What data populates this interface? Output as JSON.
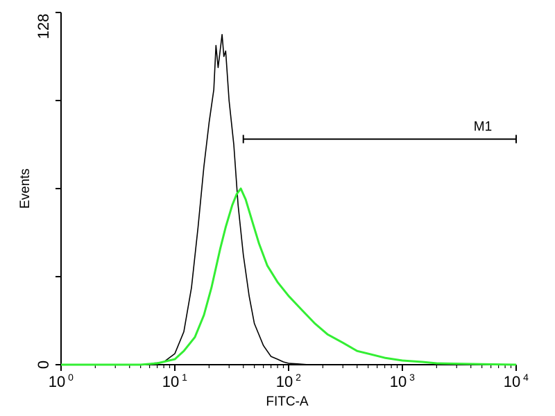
{
  "chart_data": {
    "type": "line",
    "xlabel": "FITC-A",
    "ylabel": "Events",
    "xscale": "log",
    "xlim": [
      1,
      10000
    ],
    "ylim": [
      0,
      128
    ],
    "x_ticks": [
      {
        "base": "10",
        "exp": "0"
      },
      {
        "base": "10",
        "exp": "1"
      },
      {
        "base": "10",
        "exp": "2"
      },
      {
        "base": "10",
        "exp": "3"
      },
      {
        "base": "10",
        "exp": "4"
      }
    ],
    "y_ticks": [
      "0",
      "128"
    ],
    "series": [
      {
        "color": "#000000",
        "points": [
          [
            1,
            0
          ],
          [
            5,
            0
          ],
          [
            8,
            1
          ],
          [
            10,
            4
          ],
          [
            12,
            12
          ],
          [
            14,
            28
          ],
          [
            16,
            50
          ],
          [
            18,
            72
          ],
          [
            20,
            88
          ],
          [
            22,
            100
          ],
          [
            23,
            116
          ],
          [
            24,
            108
          ],
          [
            26,
            120
          ],
          [
            27,
            112
          ],
          [
            28,
            114
          ],
          [
            30,
            96
          ],
          [
            33,
            80
          ],
          [
            36,
            58
          ],
          [
            40,
            40
          ],
          [
            45,
            25
          ],
          [
            50,
            15
          ],
          [
            60,
            7
          ],
          [
            70,
            3
          ],
          [
            80,
            2
          ],
          [
            90,
            1
          ],
          [
            100,
            0.5
          ],
          [
            120,
            0.3
          ],
          [
            150,
            0
          ],
          [
            10000,
            0
          ]
        ]
      },
      {
        "color": "#33ee33",
        "points": [
          [
            1,
            0
          ],
          [
            5,
            0
          ],
          [
            7,
            0.5
          ],
          [
            10,
            2
          ],
          [
            12,
            5
          ],
          [
            15,
            10
          ],
          [
            18,
            18
          ],
          [
            21,
            28
          ],
          [
            25,
            42
          ],
          [
            28,
            50
          ],
          [
            32,
            58
          ],
          [
            35,
            62
          ],
          [
            38,
            64
          ],
          [
            42,
            60
          ],
          [
            48,
            52
          ],
          [
            55,
            44
          ],
          [
            65,
            36
          ],
          [
            80,
            30
          ],
          [
            100,
            25
          ],
          [
            130,
            20
          ],
          [
            170,
            15
          ],
          [
            220,
            11
          ],
          [
            300,
            8
          ],
          [
            400,
            5
          ],
          [
            500,
            4
          ],
          [
            700,
            2.5
          ],
          [
            1000,
            1.5
          ],
          [
            1500,
            1
          ],
          [
            2000,
            0.5
          ],
          [
            5000,
            0.2
          ],
          [
            10000,
            0
          ]
        ]
      }
    ],
    "markers": [
      {
        "label": "M1",
        "x_start": 40,
        "x_end": 10000,
        "y": 82
      }
    ]
  }
}
